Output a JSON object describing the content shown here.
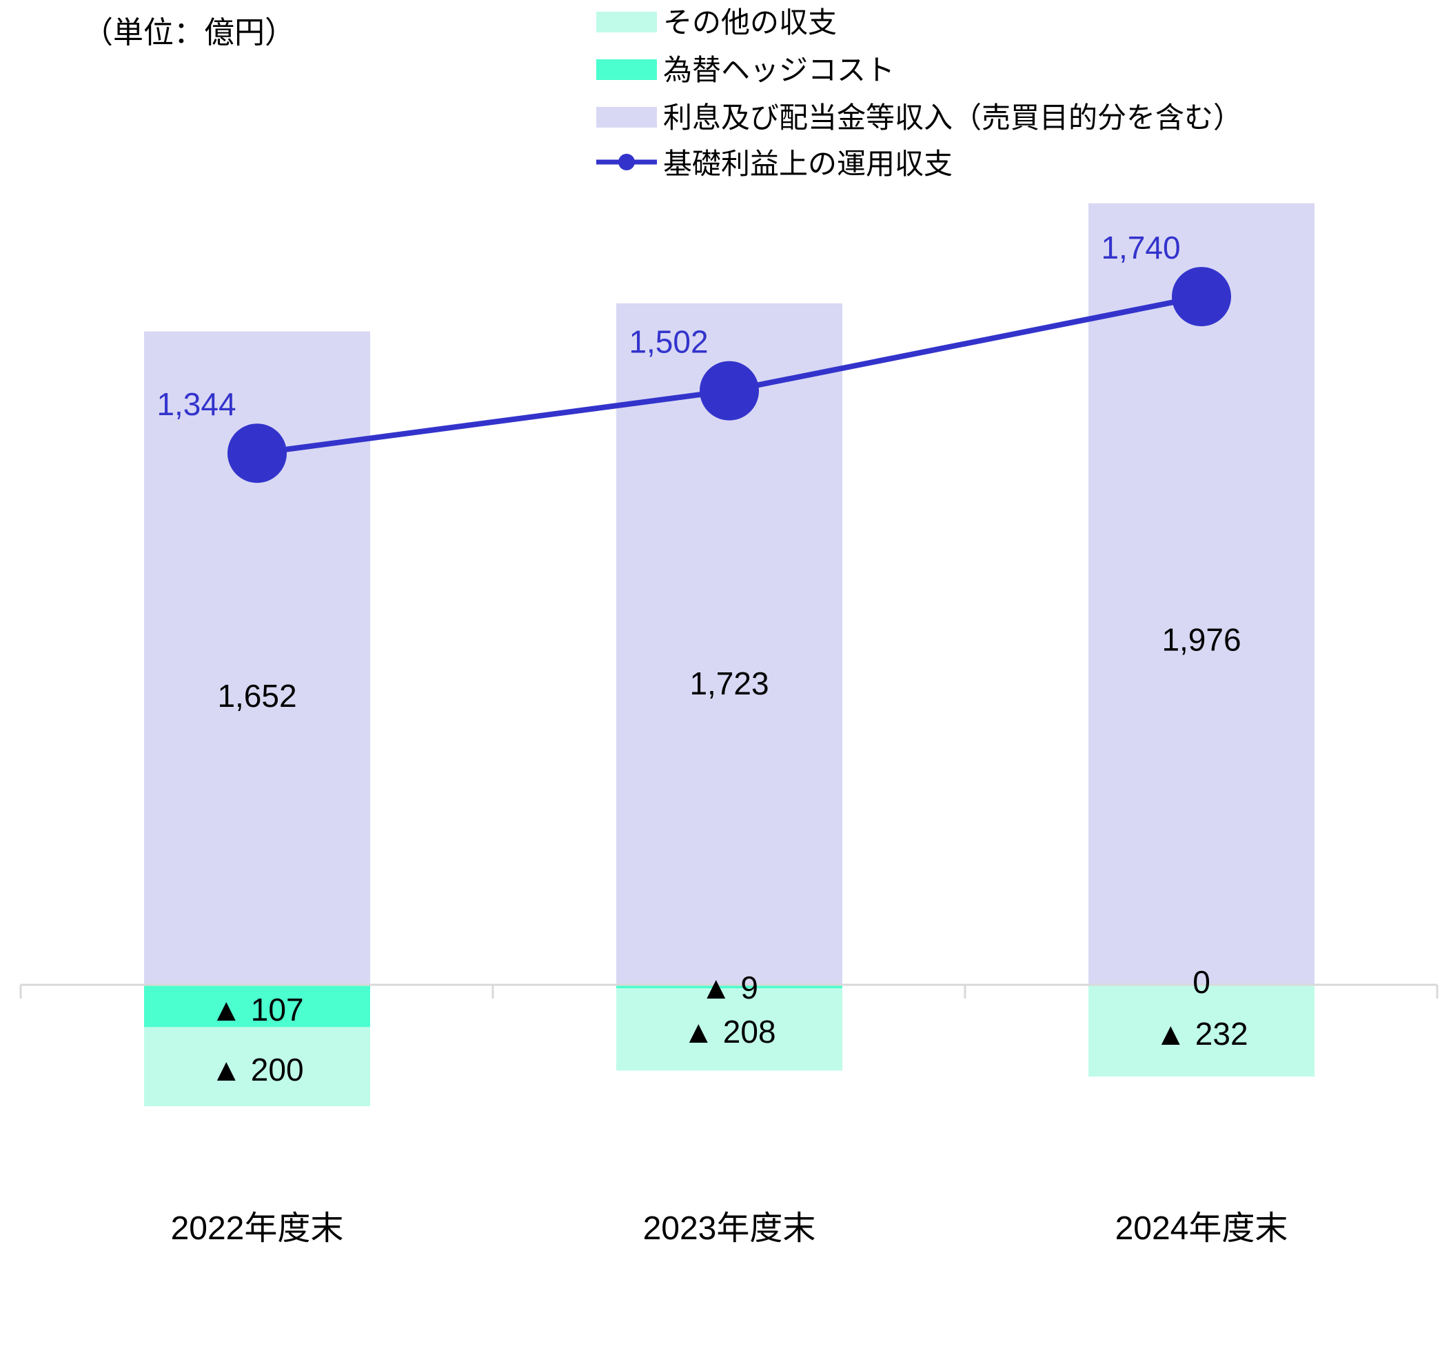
{
  "unit_label": "（単位：億円）",
  "colors": {
    "other": "#c0fbea",
    "hedge": "#4bffcf",
    "interest": "#d8d8f4",
    "line": "#3333cc",
    "axis": "#d9d9d9",
    "text": "#000000"
  },
  "legend": [
    {
      "key": "other",
      "label": "その他の収支"
    },
    {
      "key": "hedge",
      "label": "為替ヘッジコスト"
    },
    {
      "key": "interest",
      "label": "利息及び配当金等収入（売買目的分を含む）"
    },
    {
      "key": "line",
      "label": "基礎利益上の運用収支"
    }
  ],
  "chart_data": {
    "type": "bar",
    "stacked": true,
    "categories": [
      "2022年度末",
      "2023年度末",
      "2024年度末"
    ],
    "series": [
      {
        "key": "interest",
        "name": "利息及び配当金等収入（売買目的分を含む）",
        "values": [
          1652,
          1723,
          1976
        ],
        "labels": [
          "1,652",
          "1,723",
          "1,976"
        ]
      },
      {
        "key": "hedge",
        "name": "為替ヘッジコスト",
        "values": [
          -107,
          -9,
          0
        ],
        "labels": [
          "▲ 107",
          "▲ 9",
          "0"
        ]
      },
      {
        "key": "other",
        "name": "その他の収支",
        "values": [
          -200,
          -208,
          -232
        ],
        "labels": [
          "▲ 200",
          "▲ 208",
          "▲ 232"
        ]
      }
    ],
    "line_series": {
      "key": "line",
      "name": "基礎利益上の運用収支",
      "values": [
        1344,
        1502,
        1740
      ],
      "labels": [
        "1,344",
        "1,502",
        "1,740"
      ]
    },
    "ylim": [
      -500,
      2100
    ],
    "grid": false,
    "legend_position": "top"
  }
}
